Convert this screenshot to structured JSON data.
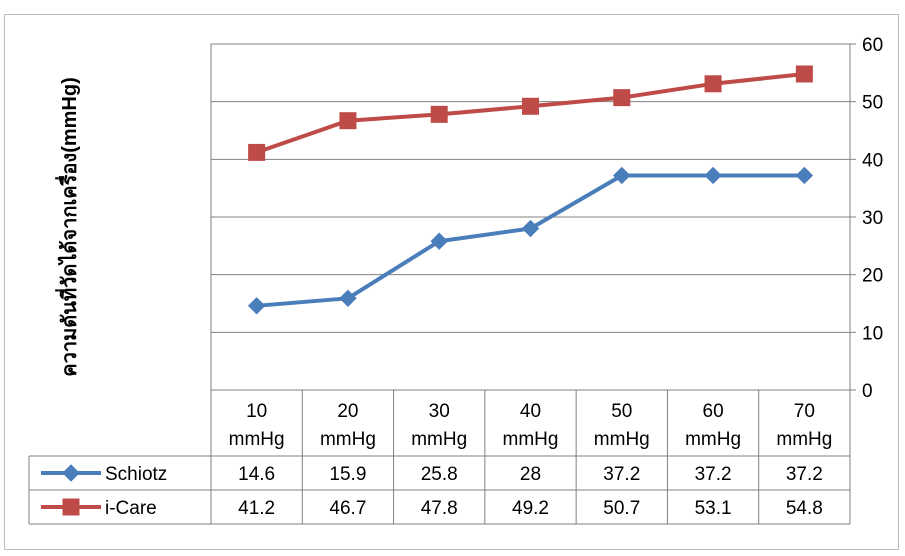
{
  "chart_data": {
    "type": "line",
    "categories": [
      "10 mmHg",
      "20 mmHg",
      "30 mmHg",
      "40 mmHg",
      "50 mmHg",
      "60 mmHg",
      "70 mmHg"
    ],
    "category_lines": [
      [
        "10",
        "mmHg"
      ],
      [
        "20",
        "mmHg"
      ],
      [
        "30",
        "mmHg"
      ],
      [
        "40",
        "mmHg"
      ],
      [
        "50",
        "mmHg"
      ],
      [
        "60",
        "mmHg"
      ],
      [
        "70",
        "mmHg"
      ]
    ],
    "series": [
      {
        "name": "Schiotz",
        "values": [
          14.6,
          15.9,
          25.8,
          28,
          37.2,
          37.2,
          37.2
        ],
        "color": "#4a7ebb",
        "marker": "diamond"
      },
      {
        "name": "i-Care",
        "values": [
          41.2,
          46.7,
          47.8,
          49.2,
          50.7,
          53.1,
          54.8
        ],
        "color": "#be4b48",
        "marker": "square"
      }
    ],
    "yticks": [
      0,
      10,
      20,
      30,
      40,
      50,
      60
    ],
    "ylim": [
      0,
      60
    ],
    "y_axis_side": "right",
    "ylabel": "ความดันที่วัดได้จากเครื่อง(mmHg)",
    "xlabel": "",
    "title": "",
    "grid": true,
    "data_table": true
  }
}
